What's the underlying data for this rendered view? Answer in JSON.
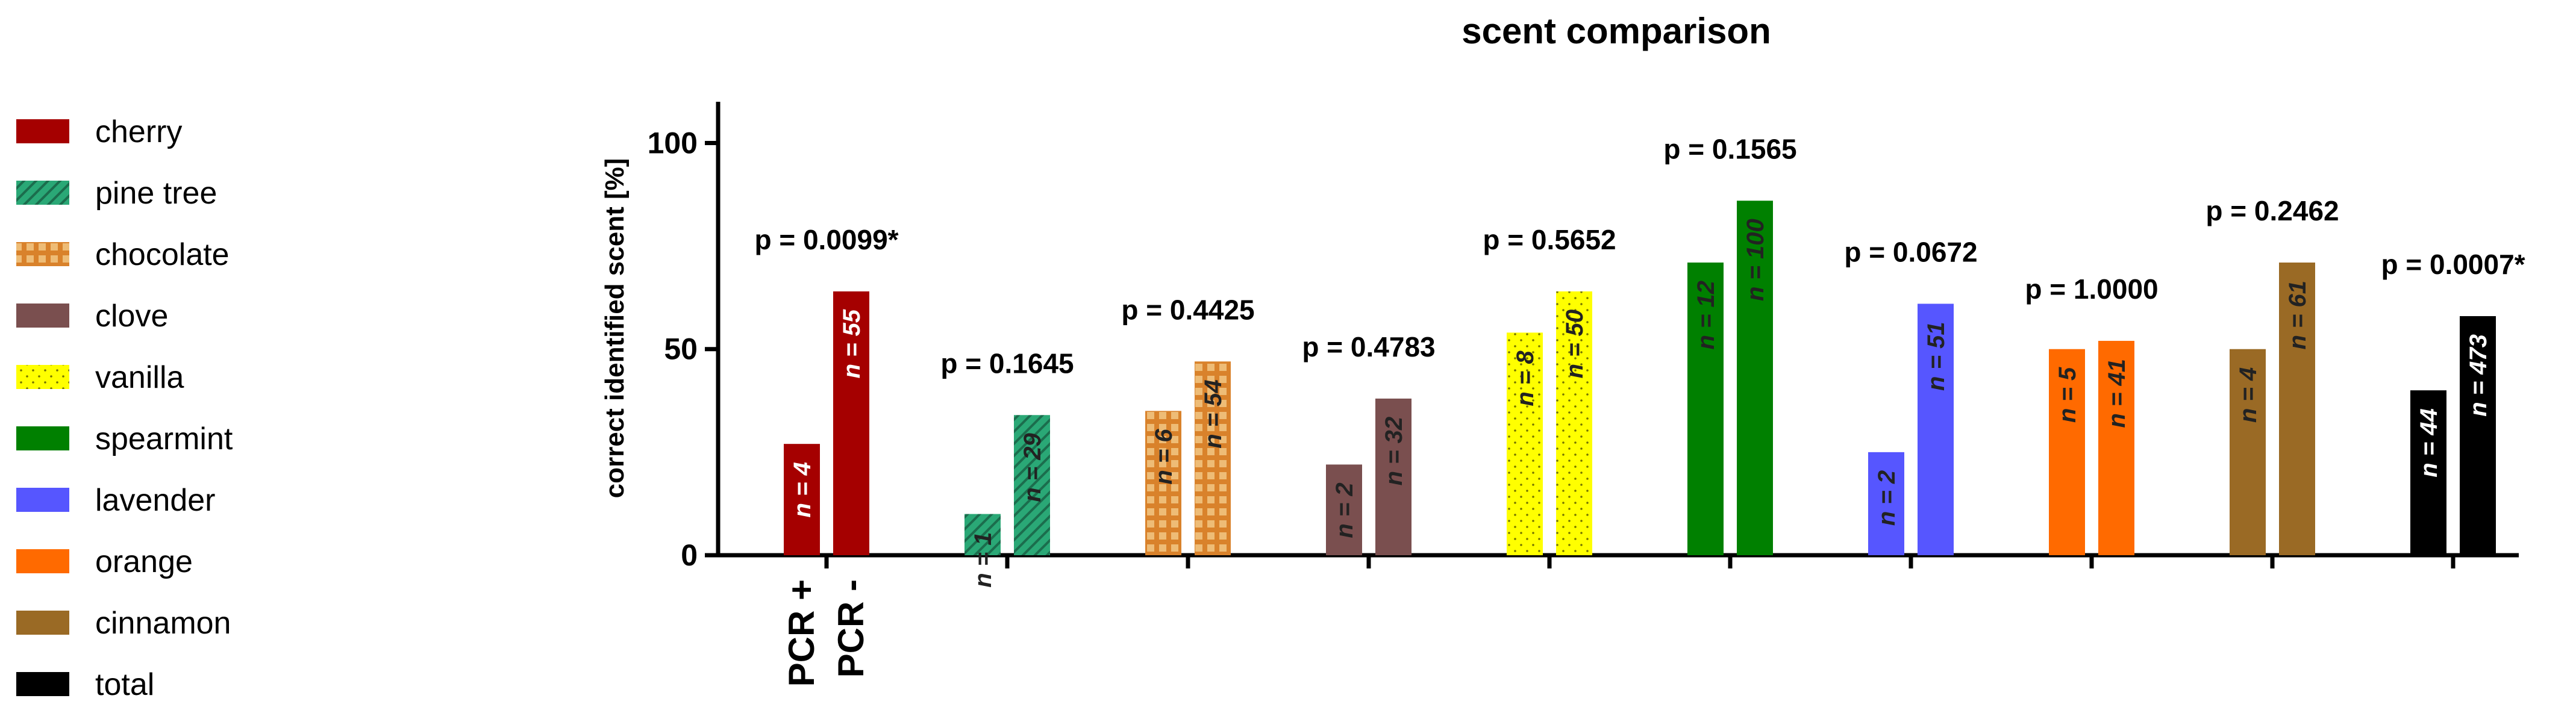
{
  "chart_data": {
    "type": "bar",
    "title": "scent comparison",
    "y_label": "correct identified scent [%]",
    "categories": [
      "PCR +",
      "PCR -"
    ],
    "ylim": [
      0,
      110
    ],
    "yticks": [
      0,
      50,
      100
    ],
    "series": [
      {
        "name": "cherry",
        "color": "#a50000",
        "values": [
          27,
          64
        ],
        "n_labels": [
          "n = 4",
          "n = 55"
        ],
        "p_label": "p = 0.0099*"
      },
      {
        "name": "pine tree",
        "color": "#2aa876",
        "pattern": "hatch",
        "values": [
          10,
          34
        ],
        "n_labels": [
          "n = 1",
          "n = 29"
        ],
        "p_label": "p = 0.1645"
      },
      {
        "name": "chocolate",
        "color": "#d9822b",
        "pattern": "grid",
        "values": [
          35,
          47
        ],
        "n_labels": [
          "n = 6",
          "n = 54"
        ],
        "p_label": "p = 0.4425"
      },
      {
        "name": "clove",
        "color": "#7a4f4f",
        "values": [
          22,
          38
        ],
        "n_labels": [
          "n = 2",
          "n = 32"
        ],
        "p_label": "p = 0.4783"
      },
      {
        "name": "vanilla",
        "color": "#ffff00",
        "pattern": "dots",
        "values": [
          54,
          64
        ],
        "n_labels": [
          "n = 8",
          "n = 50"
        ],
        "p_label": "p = 0.5652"
      },
      {
        "name": "spearmint",
        "color": "#008000",
        "values": [
          71,
          86
        ],
        "n_labels": [
          "n = 12",
          "n = 100"
        ],
        "p_label": "p = 0.1565"
      },
      {
        "name": "lavender",
        "color": "#5656ff",
        "values": [
          25,
          61
        ],
        "n_labels": [
          "n = 2",
          "n = 51"
        ],
        "p_label": "p = 0.0672"
      },
      {
        "name": "orange",
        "color": "#ff6a00",
        "values": [
          50,
          52
        ],
        "n_labels": [
          "n = 5",
          "n = 41"
        ],
        "p_label": "p = 1.0000"
      },
      {
        "name": "cinnamon",
        "color": "#9a6a25",
        "values": [
          50,
          71
        ],
        "n_labels": [
          "n = 4",
          "n = 61"
        ],
        "p_label": "p = 0.2462"
      },
      {
        "name": "total",
        "color": "#000000",
        "values": [
          40,
          58
        ],
        "n_labels": [
          "n = 44",
          "n = 473"
        ],
        "p_label": "p = 0.0007*"
      }
    ]
  }
}
